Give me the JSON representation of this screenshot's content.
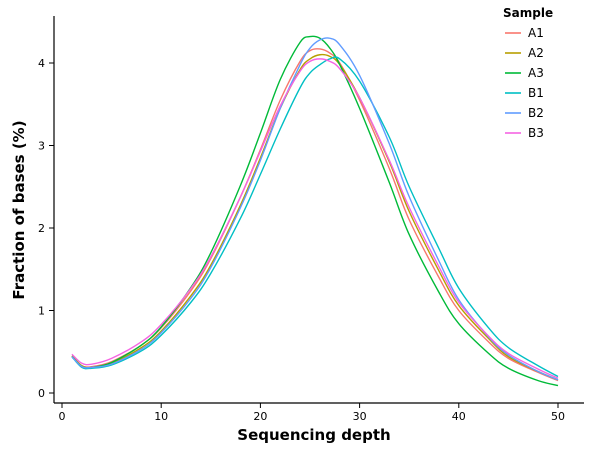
{
  "chart_data": {
    "type": "line",
    "title": "",
    "xlabel": "Sequencing depth",
    "ylabel": "Fraction of bases (%)",
    "xlim": [
      0,
      52
    ],
    "ylim": [
      -0.1,
      4.6
    ],
    "x_ticks": [
      0,
      10,
      20,
      30,
      40,
      50
    ],
    "y_ticks": [
      0,
      1,
      2,
      3,
      4
    ],
    "grid": false,
    "legend": {
      "title": "Sample",
      "position": "top-right"
    },
    "series": [
      {
        "name": "A1",
        "color": "#F8766D",
        "x": [
          1,
          2,
          3,
          5,
          8,
          10,
          13,
          15,
          18,
          20,
          22,
          24,
          25,
          26,
          27,
          28,
          30,
          33,
          35,
          38,
          40,
          43,
          45,
          48,
          50
        ],
        "y": [
          0.45,
          0.33,
          0.32,
          0.38,
          0.58,
          0.79,
          1.24,
          1.63,
          2.38,
          2.95,
          3.55,
          4.02,
          4.15,
          4.17,
          4.12,
          4.0,
          3.55,
          2.72,
          2.1,
          1.4,
          1.0,
          0.62,
          0.42,
          0.25,
          0.15
        ]
      },
      {
        "name": "A2",
        "color": "#B79F00",
        "x": [
          1,
          2,
          3,
          5,
          8,
          10,
          13,
          15,
          18,
          20,
          22,
          24,
          25,
          26,
          27,
          28,
          30,
          33,
          35,
          38,
          40,
          43,
          45,
          48,
          50
        ],
        "y": [
          0.45,
          0.33,
          0.31,
          0.36,
          0.55,
          0.75,
          1.18,
          1.55,
          2.28,
          2.85,
          3.45,
          3.92,
          4.05,
          4.1,
          4.08,
          3.98,
          3.58,
          2.8,
          2.2,
          1.48,
          1.06,
          0.66,
          0.44,
          0.26,
          0.16
        ]
      },
      {
        "name": "A3",
        "color": "#00BA38",
        "x": [
          1,
          2,
          3,
          5,
          8,
          10,
          13,
          15,
          18,
          20,
          22,
          24,
          25,
          26,
          27,
          28,
          30,
          33,
          35,
          38,
          40,
          43,
          45,
          48,
          50
        ],
        "y": [
          0.44,
          0.32,
          0.31,
          0.37,
          0.58,
          0.8,
          1.28,
          1.7,
          2.52,
          3.15,
          3.8,
          4.25,
          4.32,
          4.3,
          4.18,
          3.98,
          3.45,
          2.55,
          1.92,
          1.22,
          0.84,
          0.48,
          0.3,
          0.15,
          0.09
        ]
      },
      {
        "name": "B1",
        "color": "#00BFC4",
        "x": [
          1,
          2,
          3,
          5,
          8,
          10,
          13,
          15,
          18,
          20,
          22,
          24,
          25,
          26,
          27,
          28,
          30,
          33,
          35,
          38,
          40,
          43,
          45,
          48,
          50
        ],
        "y": [
          0.44,
          0.31,
          0.3,
          0.34,
          0.51,
          0.7,
          1.1,
          1.45,
          2.12,
          2.65,
          3.2,
          3.7,
          3.88,
          3.98,
          4.05,
          4.05,
          3.78,
          3.1,
          2.5,
          1.75,
          1.27,
          0.79,
          0.55,
          0.33,
          0.2
        ]
      },
      {
        "name": "B2",
        "color": "#619CFF",
        "x": [
          1,
          2,
          3,
          5,
          8,
          10,
          13,
          15,
          18,
          20,
          22,
          24,
          25,
          26,
          27,
          28,
          30,
          33,
          35,
          38,
          40,
          43,
          45,
          48,
          50
        ],
        "y": [
          0.44,
          0.32,
          0.31,
          0.35,
          0.53,
          0.73,
          1.15,
          1.52,
          2.25,
          2.82,
          3.45,
          3.98,
          4.18,
          4.28,
          4.3,
          4.22,
          3.85,
          3.02,
          2.38,
          1.6,
          1.13,
          0.68,
          0.46,
          0.26,
          0.16
        ]
      },
      {
        "name": "B3",
        "color": "#F564E3",
        "x": [
          1,
          2,
          3,
          5,
          8,
          10,
          13,
          15,
          18,
          20,
          22,
          24,
          25,
          26,
          27,
          28,
          30,
          33,
          35,
          38,
          40,
          43,
          45,
          48,
          50
        ],
        "y": [
          0.47,
          0.36,
          0.35,
          0.42,
          0.62,
          0.83,
          1.27,
          1.65,
          2.38,
          2.93,
          3.48,
          3.9,
          4.02,
          4.05,
          4.02,
          3.93,
          3.58,
          2.82,
          2.25,
          1.53,
          1.1,
          0.69,
          0.48,
          0.29,
          0.18
        ]
      }
    ]
  }
}
